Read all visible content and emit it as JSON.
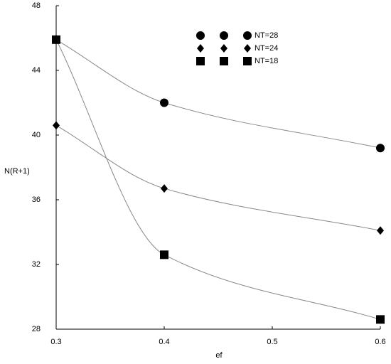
{
  "chart_data": {
    "type": "scatter",
    "x_label": "ef",
    "y_label": "N(R+1)",
    "x": [
      0.3,
      0.4,
      0.6
    ],
    "series": [
      {
        "name": "NT=28",
        "marker": "circle",
        "color": "#000000",
        "values": [
          45.9,
          42.0,
          39.2
        ]
      },
      {
        "name": "NT=24",
        "marker": "diamond",
        "color": "#000000",
        "values": [
          40.6,
          36.7,
          34.1
        ]
      },
      {
        "name": "NT=18",
        "marker": "square",
        "color": "#000000",
        "values": [
          45.9,
          32.6,
          28.6
        ]
      }
    ],
    "xlim": [
      0.3,
      0.6
    ],
    "xticks": [
      0.3,
      0.4,
      0.5,
      0.6
    ],
    "ylim": [
      28,
      48
    ],
    "yticks": [
      28,
      32,
      36,
      40,
      44,
      48
    ],
    "smooth_lines": true,
    "line_color": "#888888"
  }
}
